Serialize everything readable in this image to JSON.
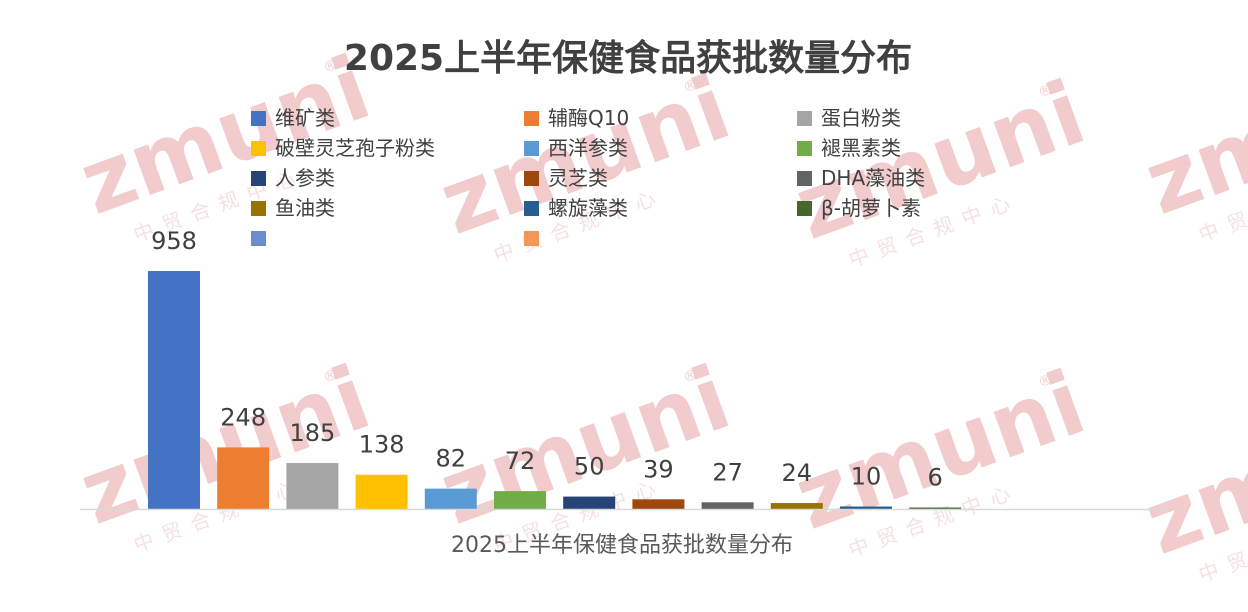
{
  "watermark": {
    "logo": "zmuni",
    "subtitle": "中贸合规中心",
    "registered": "®"
  },
  "chart_data": {
    "type": "bar",
    "title": "2025上半年保健食品获批数量分布",
    "xlabel": "2025上半年保健食品获批数量分布",
    "ylabel": "",
    "ylim": [
      0,
      1000
    ],
    "grid": false,
    "legend_position": "top",
    "categories": [
      "维矿类",
      "辅酶Q10",
      "蛋白粉类",
      "破壁灵芝孢子粉类",
      "西洋参类",
      "褪黑素类",
      "人参类",
      "灵芝类",
      "DHA藻油类",
      "鱼油类",
      "螺旋藻类",
      "β-胡萝卜素",
      "",
      ""
    ],
    "values": [
      958,
      248,
      185,
      138,
      82,
      72,
      50,
      39,
      27,
      24,
      10,
      6,
      null,
      null
    ],
    "colors": [
      "#4472c4",
      "#ed7d31",
      "#a5a5a5",
      "#ffc000",
      "#5b9bd5",
      "#70ad47",
      "#264478",
      "#9e480e",
      "#636363",
      "#997300",
      "#255e91",
      "#43682b",
      "#698ed0",
      "#f1975a"
    ]
  }
}
